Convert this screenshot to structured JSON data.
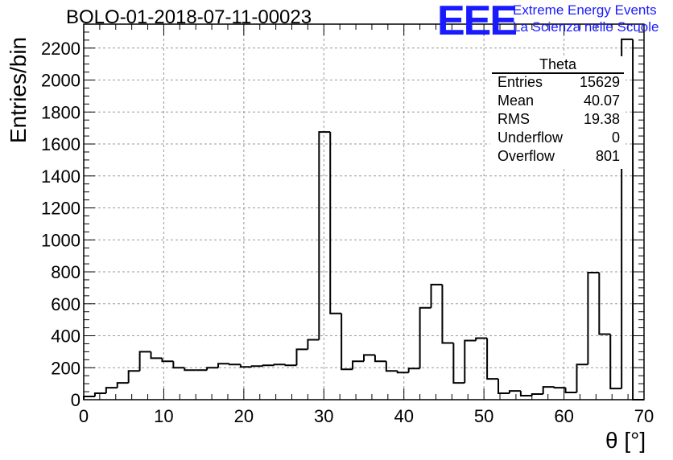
{
  "chart_data": {
    "type": "bar",
    "title": "BOLO-01-2018-07-11-00023",
    "xlabel": "θ [°]",
    "ylabel": "Entries/bin",
    "xlim": [
      0,
      70
    ],
    "ylim": [
      0,
      2350
    ],
    "bin_width": 1.4,
    "x_ticks": [
      0,
      10,
      20,
      30,
      40,
      50,
      60,
      70
    ],
    "y_ticks": [
      0,
      200,
      400,
      600,
      800,
      1000,
      1200,
      1400,
      1600,
      1800,
      2000,
      2200
    ],
    "grid": true,
    "legend": "none",
    "values": [
      20,
      40,
      75,
      105,
      180,
      300,
      260,
      240,
      200,
      185,
      185,
      200,
      225,
      220,
      205,
      210,
      215,
      220,
      215,
      315,
      375,
      1675,
      540,
      190,
      240,
      280,
      240,
      180,
      170,
      195,
      575,
      720,
      355,
      105,
      370,
      385,
      130,
      40,
      55,
      25,
      35,
      80,
      75,
      45,
      220,
      795,
      410,
      70,
      2255,
      0
    ],
    "stats_box": {
      "title": "Theta",
      "rows": [
        {
          "label": "Entries",
          "value": "15629"
        },
        {
          "label": "Mean",
          "value": "40.07"
        },
        {
          "label": "RMS",
          "value": "19.38"
        },
        {
          "label": "Underflow",
          "value": "0"
        },
        {
          "label": "Overflow",
          "value": "801"
        }
      ]
    }
  },
  "logo": {
    "mark": "EEE",
    "line1": "Extreme Energy Events",
    "line2": "La Scienza nelle Scuole"
  },
  "colors": {
    "line": "#000000",
    "grid": "#999999",
    "logo": "#1a1aff"
  }
}
